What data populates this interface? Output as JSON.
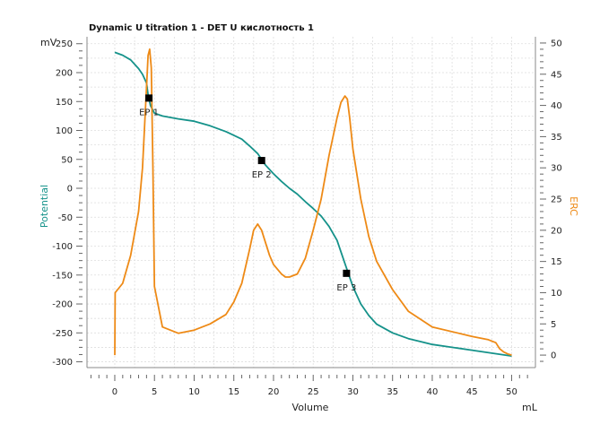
{
  "chart_data": {
    "type": "line",
    "title": "Dynamic U titration 1 - DET U кислотность  1",
    "xlabel": "Volume",
    "xunit": "mL",
    "ylabel_left": "Potential",
    "yunit_left": "mV",
    "ylabel_right": "ERC",
    "xlim": [
      -3.5,
      53
    ],
    "ylim_left": [
      -310,
      262
    ],
    "ylim_right": [
      -2,
      51
    ],
    "x_ticks": [
      0,
      5,
      10,
      15,
      20,
      25,
      30,
      35,
      40,
      45,
      50
    ],
    "y_left_ticks": [
      250,
      200,
      150,
      100,
      50,
      0,
      -50,
      -100,
      -150,
      -200,
      -250,
      -300
    ],
    "y_right_ticks": [
      50,
      45,
      40,
      35,
      30,
      25,
      20,
      15,
      10,
      5,
      0
    ],
    "grid": true,
    "colors": {
      "potential": "#15928a",
      "erc": "#ee8a16",
      "marker": "#000000"
    },
    "series": [
      {
        "name": "Potential",
        "axis": "left",
        "x": [
          0,
          1,
          2,
          3,
          3.5,
          4,
          4.2,
          4.5,
          5,
          6,
          8,
          10,
          12,
          14,
          16,
          17,
          18,
          19,
          20,
          21,
          22,
          23,
          24,
          25,
          26,
          27,
          28,
          29,
          30,
          31,
          32,
          33,
          35,
          37,
          40,
          45,
          50
        ],
        "values": [
          235,
          230,
          222,
          207,
          197,
          182,
          162,
          143,
          130,
          125,
          120,
          116,
          108,
          98,
          85,
          73,
          60,
          40,
          25,
          12,
          0,
          -10,
          -23,
          -35,
          -48,
          -66,
          -90,
          -130,
          -170,
          -200,
          -220,
          -235,
          -250,
          -260,
          -270,
          -280,
          -290
        ]
      },
      {
        "name": "ERC",
        "axis": "right",
        "x": [
          0,
          0.05,
          1,
          2,
          3,
          3.5,
          4,
          4.2,
          4.4,
          4.6,
          4.8,
          5,
          6,
          8,
          10,
          12,
          14,
          15,
          16,
          17,
          17.5,
          18,
          18.5,
          19,
          19.5,
          20,
          21,
          21.5,
          22,
          23,
          24,
          25,
          26,
          27,
          28,
          28.5,
          29,
          29.3,
          29.6,
          30,
          31,
          32,
          33,
          35,
          37,
          40,
          45,
          47,
          48,
          48.5,
          49,
          49.5,
          50
        ],
        "values": [
          0,
          10,
          11.5,
          16,
          23,
          30,
          43,
          48,
          49,
          46,
          30,
          11,
          4.5,
          3.5,
          4,
          5,
          6.5,
          8.5,
          11.5,
          17,
          20,
          21,
          20,
          18,
          16,
          14.5,
          13,
          12.5,
          12.5,
          13,
          15.5,
          20,
          25,
          32,
          38,
          40.5,
          41.5,
          41,
          38,
          33,
          25,
          19,
          15,
          10.5,
          7,
          4.5,
          3,
          2.5,
          2,
          1,
          0.5,
          0.2,
          0
        ]
      }
    ],
    "endpoints": [
      {
        "label": "EP 1",
        "x": 4.3,
        "y": 156
      },
      {
        "label": "EP 2",
        "x": 18.5,
        "y": 48
      },
      {
        "label": "EP 3",
        "x": 29.2,
        "y": -147
      }
    ]
  }
}
